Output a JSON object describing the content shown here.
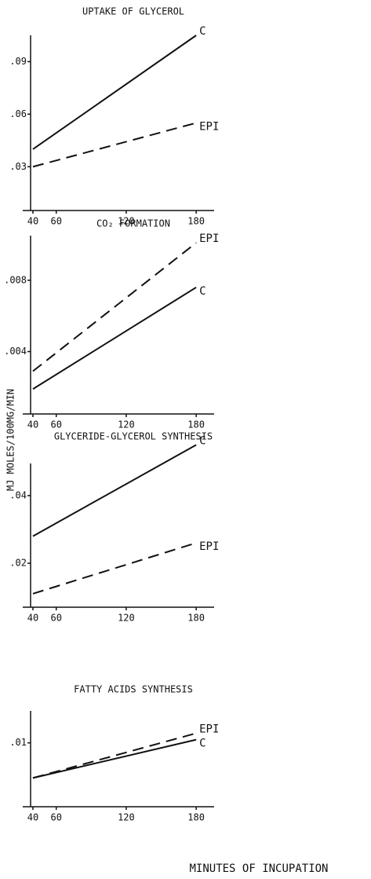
{
  "chart_data": [
    {
      "type": "line",
      "title": "UPTAKE OF GLYCEROL",
      "x": [
        40,
        180
      ],
      "series": [
        {
          "name": "C",
          "color": "#111",
          "dashed": false,
          "values": [
            0.04,
            0.105
          ]
        },
        {
          "name": "EPI",
          "color": "#111",
          "dashed": true,
          "values": [
            0.03,
            0.055
          ]
        }
      ],
      "xlim": [
        38,
        190
      ],
      "xticks": [
        40,
        60,
        120,
        180
      ],
      "ylim": [
        0.005,
        0.105
      ],
      "yticks": [
        {
          "value": 0.03,
          "label": ".03"
        },
        {
          "value": 0.06,
          "label": ".06"
        },
        {
          "value": 0.09,
          "label": ".09"
        }
      ]
    },
    {
      "type": "line",
      "title": "CO₂ FORMATION",
      "x": [
        40,
        180
      ],
      "series": [
        {
          "name": "C",
          "color": "#111",
          "dashed": false,
          "values": [
            0.0019,
            0.0076
          ]
        },
        {
          "name": "EPI",
          "color": "#111",
          "dashed": true,
          "values": [
            0.0029,
            0.0101
          ]
        }
      ],
      "xlim": [
        38,
        190
      ],
      "xticks": [
        40,
        60,
        120,
        180
      ],
      "ylim": [
        0.0005,
        0.0105
      ],
      "yticks": [
        {
          "value": 0.004,
          "label": ".004"
        },
        {
          "value": 0.008,
          "label": ".008"
        }
      ]
    },
    {
      "type": "line",
      "title": "GLYCERIDE-GLYCEROL SYNTHESIS",
      "x": [
        40,
        180
      ],
      "series": [
        {
          "name": "C",
          "color": "#111",
          "dashed": false,
          "values": [
            0.028,
            0.055
          ]
        },
        {
          "name": "EPI",
          "color": "#111",
          "dashed": true,
          "values": [
            0.011,
            0.026
          ]
        }
      ],
      "xlim": [
        38,
        190
      ],
      "xticks": [
        40,
        60,
        120,
        180
      ],
      "ylim": [
        0.007,
        0.0495
      ],
      "yticks": [
        {
          "value": 0.02,
          "label": ".02"
        },
        {
          "value": 0.04,
          "label": ".04"
        }
      ]
    },
    {
      "type": "line",
      "title": "FATTY ACIDS SYNTHESIS",
      "x": [
        40,
        180
      ],
      "series": [
        {
          "name": "C",
          "color": "#111",
          "dashed": false,
          "values": [
            0.0045,
            0.0105
          ]
        },
        {
          "name": "EPI",
          "color": "#111",
          "dashed": true,
          "values": [
            0.0045,
            0.0115
          ]
        }
      ],
      "xlim": [
        38,
        190
      ],
      "xticks": [
        40,
        60,
        120,
        180
      ],
      "ylim": [
        0,
        0.015
      ],
      "yticks": [
        {
          "value": 0.01,
          "label": ".01"
        }
      ]
    }
  ],
  "ylabel": "MJ MOLES/100MG/MIN",
  "xlabel": "MINUTES OF INCUPATION"
}
